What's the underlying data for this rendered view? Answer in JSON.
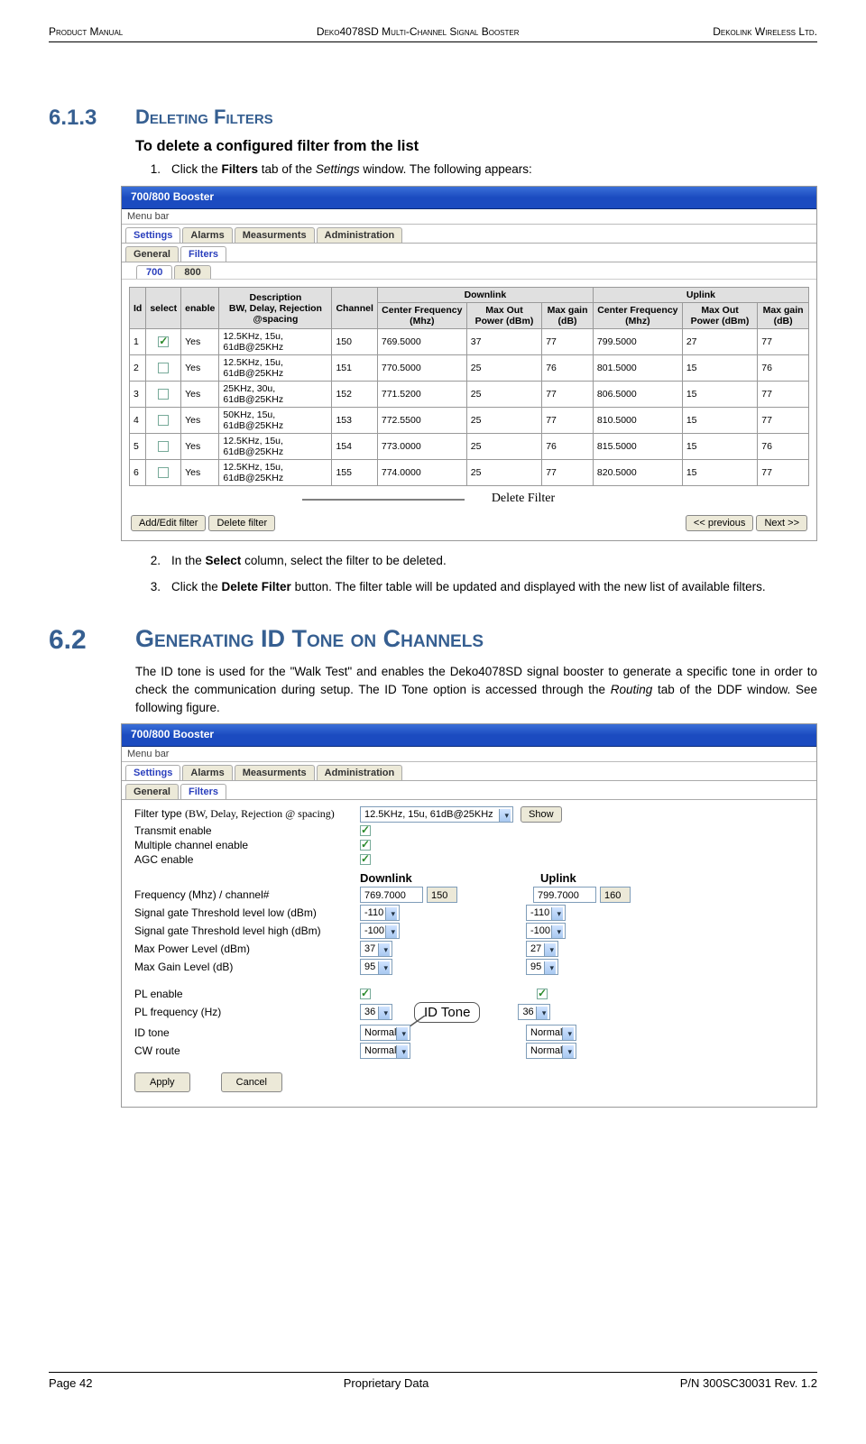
{
  "header": {
    "left": "Product Manual",
    "mid": "Deko4078SD Multi-Channel Signal Booster",
    "right": "Dekolink Wireless Ltd."
  },
  "footer": {
    "left": "Page 42",
    "mid": "Proprietary Data",
    "right": "P/N 300SC30031 Rev. 1.2"
  },
  "sec613": {
    "num": "6.1.3",
    "title": "Deleting Filters"
  },
  "sec62": {
    "num": "6.2",
    "title": "Generating ID Tone on Channels"
  },
  "subhead": "To delete a configured filter from the list",
  "step1a": "Click the ",
  "step1b": "Filters",
  "step1c": " tab of the ",
  "step1d": "Settings",
  "step1e": " window. The following appears:",
  "step2a": "In the ",
  "step2b": "Select",
  "step2c": " column, select the filter to be deleted.",
  "step3a": "Click the ",
  "step3b": "Delete Filter",
  "step3c": " button. The filter table will be updated and displayed with the new list of available filters.",
  "para62a": "The ID tone is used for the \"Walk Test\" and enables the Deko4078SD signal booster to generate a specific tone in order to check the communication during setup. The ID Tone option is accessed through the ",
  "para62b": "Routing",
  "para62c": " tab of the DDF window. See following figure.",
  "shot": {
    "title": "700/800 Booster",
    "menubar": "Menu bar",
    "tabs": [
      "Settings",
      "Alarms",
      "Measurments",
      "Administration"
    ],
    "subtabs": [
      "General",
      "Filters"
    ],
    "bandtabs": [
      "700",
      "800"
    ],
    "delLabel": "Delete Filter",
    "btns": {
      "add": "Add/Edit filter",
      "del": "Delete filter",
      "prev": "<< previous",
      "next": "Next  >>"
    },
    "thead": {
      "id": "Id",
      "select": "select",
      "enable": "enable",
      "desc": "Description",
      "desc2": "BW, Delay, Rejection @spacing",
      "channel": "Channel",
      "dl": "Downlink",
      "ul": "Uplink",
      "cf": "Center Frequency (Mhz)",
      "mop": "Max Out Power (dBm)",
      "mg": "Max gain (dB)"
    },
    "rows": [
      {
        "id": "1",
        "en": "Yes",
        "desc": "12.5KHz, 15u, 61dB@25KHz",
        "ch": "150",
        "dcf": "769.5000",
        "dmop": "37",
        "dmg": "77",
        "ucf": "799.5000",
        "umop": "27",
        "umg": "77",
        "sel": true
      },
      {
        "id": "2",
        "en": "Yes",
        "desc": "12.5KHz, 15u, 61dB@25KHz",
        "ch": "151",
        "dcf": "770.5000",
        "dmop": "25",
        "dmg": "76",
        "ucf": "801.5000",
        "umop": "15",
        "umg": "76",
        "sel": false
      },
      {
        "id": "3",
        "en": "Yes",
        "desc": "25KHz,   30u, 61dB@25KHz",
        "ch": "152",
        "dcf": "771.5200",
        "dmop": "25",
        "dmg": "77",
        "ucf": "806.5000",
        "umop": "15",
        "umg": "77",
        "sel": false
      },
      {
        "id": "4",
        "en": "Yes",
        "desc": "50KHz,   15u, 61dB@25KHz",
        "ch": "153",
        "dcf": "772.5500",
        "dmop": "25",
        "dmg": "77",
        "ucf": "810.5000",
        "umop": "15",
        "umg": "77",
        "sel": false
      },
      {
        "id": "5",
        "en": "Yes",
        "desc": "12.5KHz, 15u, 61dB@25KHz",
        "ch": "154",
        "dcf": "773.0000",
        "dmop": "25",
        "dmg": "76",
        "ucf": "815.5000",
        "umop": "15",
        "umg": "76",
        "sel": false
      },
      {
        "id": "6",
        "en": "Yes",
        "desc": "12.5KHz, 15u, 61dB@25KHz",
        "ch": "155",
        "dcf": "774.0000",
        "dmop": "25",
        "dmg": "77",
        "ucf": "820.5000",
        "umop": "15",
        "umg": "77",
        "sel": false
      }
    ]
  },
  "shot2": {
    "labels": {
      "ftype": "Filter type ",
      "ftype2": "(BW, Delay, Rejection @ spacing)",
      "txen": "Transmit enable",
      "mcen": "Multiple channel enable",
      "agc": "AGC enable",
      "freq": "Frequency  (Mhz)       / channel#",
      "sgtl": "Signal gate Threshold level low (dBm)",
      "sgth": "Signal gate Threshold level high (dBm)",
      "mpl": "Max Power Level (dBm)",
      "mgl": "Max Gain Level (dB)",
      "plen": "PL enable",
      "plf": "PL frequency (Hz)",
      "idt": "ID tone",
      "cwr": "CW route",
      "dl": "Downlink",
      "ul": "Uplink"
    },
    "vals": {
      "ftype": "12.5KHz, 15u, 61dB@25KHz",
      "dl": {
        "freq": "769.7000",
        "ch": "150",
        "sgtl": "-110",
        "sgth": "-100",
        "mpl": "37",
        "mgl": "95",
        "plf": "36",
        "idt": "Normal",
        "cwr": "Normal"
      },
      "ul": {
        "freq": "799.7000",
        "ch": "160",
        "sgtl": "-110",
        "sgth": "-100",
        "mpl": "27",
        "mgl": "95",
        "plf": "36",
        "idt": "Normal",
        "cwr": "Normal"
      }
    },
    "btns": {
      "show": "Show",
      "apply": "Apply",
      "cancel": "Cancel"
    },
    "callout": "ID Tone"
  }
}
